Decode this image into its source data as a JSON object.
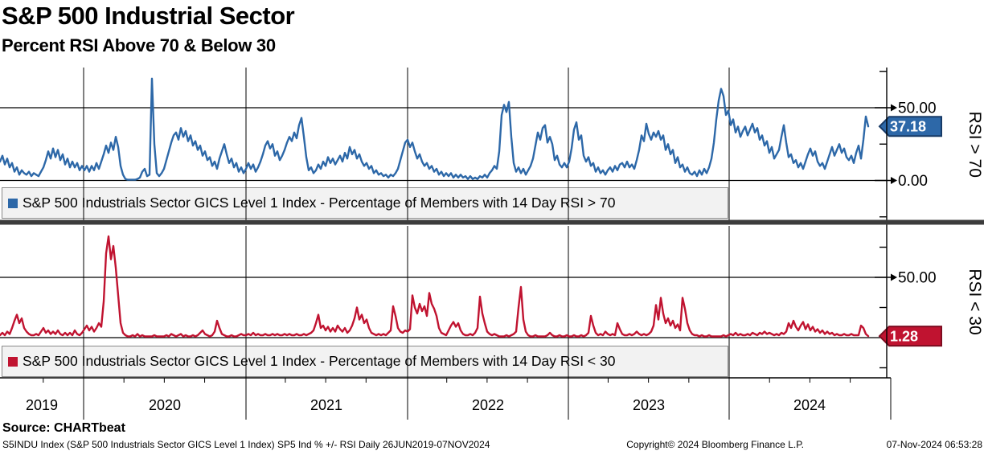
{
  "title": "S&P 500 Industrial Sector",
  "subtitle": "Percent RSI Above 70 & Below 30",
  "source_label": "Source: CHARTbeat",
  "footer": {
    "left": "S5INDU Index (S&P 500 Industrials Sector GICS Level 1 Index) SP5 Ind % +/- RSI  Daily 26JUN2019-07NOV2024",
    "center": "Copyright© 2024 Bloomberg Finance L.P.",
    "right": "07-Nov-2024 06:53:28"
  },
  "x_axis": {
    "years": [
      "2019",
      "2020",
      "2021",
      "2022",
      "2023",
      "2024"
    ]
  },
  "panels": [
    {
      "legend": "S&P 500 Industrials Sector GICS Level 1 Index - Percentage of Members with 14 Day RSI > 70",
      "axis_title": "RSI > 70",
      "labeled_ticks": [
        "50.00",
        "0.00"
      ],
      "last_value_label": "37.18",
      "color": "#2d68a8",
      "badge_border": "#173a66"
    },
    {
      "legend": "S&P 500 Industrials Sector GICS Level 1 Index - Percentage of Members with 14 Day RSI < 30",
      "axis_title": "RSI < 30",
      "labeled_ticks": [
        "50.00"
      ],
      "last_value_label": "1.28",
      "color": "#c01330",
      "badge_border": "#7d0c20"
    }
  ],
  "chart_data": {
    "type": "line",
    "title": "S&P 500 Industrial Sector - Percent RSI Above 70 & Below 30",
    "x_range": {
      "start": "26JUN2019",
      "end": "07NOV2024"
    },
    "sample_interval_days": 5.5,
    "x_year_divider_labels": [
      "2020",
      "2021",
      "2022",
      "2023",
      "2024"
    ],
    "grid": true,
    "legend_position": "below-each-panel",
    "panels": [
      {
        "name": "Percentage of Members with 14 Day RSI > 70",
        "ylabel": "RSI > 70",
        "ylim": [
          -28,
          78
        ],
        "gridlines_y": [
          0,
          50
        ],
        "minor_ticks_y": [
          75,
          25,
          -25
        ],
        "last_value": 37.18,
        "values": [
          13,
          17,
          11,
          15,
          9,
          12,
          6,
          9,
          4,
          7,
          5,
          4,
          6,
          3,
          5,
          4,
          3,
          6,
          9,
          14,
          20,
          15,
          22,
          16,
          21,
          14,
          18,
          11,
          15,
          9,
          13,
          9,
          12,
          7,
          10,
          7,
          10,
          6,
          10,
          7,
          12,
          8,
          13,
          18,
          24,
          19,
          26,
          21,
          30,
          23,
          10,
          4,
          1,
          0.5,
          0.5,
          0.5,
          0.5,
          1,
          2,
          6,
          8,
          3,
          4,
          70,
          25,
          5,
          3,
          5,
          8,
          14,
          20,
          26,
          31,
          33,
          28,
          36,
          30,
          34,
          27,
          31,
          24,
          27,
          21,
          24,
          17,
          20,
          14,
          16,
          10,
          13,
          8,
          15,
          20,
          25,
          18,
          12,
          15,
          9,
          12,
          6,
          9,
          5,
          8,
          12,
          8,
          11,
          6,
          9,
          13,
          18,
          24,
          27,
          22,
          25,
          17,
          20,
          14,
          17,
          21,
          26,
          30,
          27,
          33,
          29,
          38,
          43,
          30,
          16,
          7,
          9,
          5,
          7,
          11,
          8,
          13,
          10,
          16,
          12,
          15,
          11,
          14,
          17,
          13,
          19,
          15,
          23,
          18,
          21,
          15,
          18,
          13,
          10,
          12,
          8,
          10,
          5,
          7,
          4,
          5,
          3,
          4,
          2,
          4,
          3,
          5,
          8,
          14,
          20,
          26,
          28,
          23,
          26,
          20,
          15,
          18,
          13,
          10,
          12,
          8,
          10,
          6,
          8,
          4,
          6,
          3,
          5,
          3,
          5,
          2,
          4,
          2,
          4,
          2,
          3,
          1,
          3,
          1,
          2,
          1,
          3,
          2,
          4,
          2,
          5,
          7,
          10,
          8,
          20,
          45,
          52,
          47,
          54,
          30,
          12,
          6,
          9,
          5,
          8,
          4,
          7,
          10,
          15,
          24,
          33,
          28,
          36,
          38,
          26,
          30,
          25,
          14,
          17,
          11,
          9,
          12,
          9,
          13,
          22,
          35,
          40,
          28,
          31,
          17,
          13,
          16,
          10,
          12,
          6,
          9,
          5,
          7,
          4,
          7,
          9,
          6,
          10,
          7,
          11,
          12,
          9,
          13,
          9,
          11,
          8,
          14,
          21,
          31,
          27,
          39,
          32,
          28,
          33,
          30,
          34,
          28,
          31,
          21,
          25,
          18,
          21,
          12,
          16,
          9,
          11,
          6,
          9,
          5,
          4,
          6,
          3,
          7,
          4,
          8,
          5,
          9,
          15,
          26,
          42,
          55,
          63,
          58,
          45,
          48,
          38,
          42,
          33,
          37,
          30,
          34,
          37,
          31,
          35,
          39,
          33,
          36,
          28,
          31,
          24,
          27,
          19,
          23,
          15,
          18,
          21,
          30,
          38,
          26,
          16,
          18,
          12,
          14,
          9,
          12,
          8,
          13,
          18,
          22,
          17,
          20,
          13,
          10,
          12,
          8,
          13,
          18,
          23,
          17,
          21,
          25,
          19,
          22,
          16,
          14,
          17,
          12,
          19,
          24,
          15,
          28,
          44,
          37.18
        ]
      },
      {
        "name": "Percentage of Members with 14 Day RSI < 30",
        "ylabel": "RSI < 30",
        "ylim": [
          -30,
          93
        ],
        "gridlines_y": [
          0,
          50
        ],
        "minor_ticks_y": [
          75,
          25,
          -25
        ],
        "last_value": 1.28,
        "values": [
          2,
          4,
          2,
          5,
          3,
          8,
          14,
          19,
          12,
          16,
          8,
          5,
          3,
          2,
          2,
          3,
          2,
          5,
          8,
          4,
          6,
          3,
          5,
          3,
          6,
          3,
          2,
          4,
          2,
          4,
          2,
          6,
          3,
          2,
          4,
          7,
          10,
          6,
          9,
          5,
          8,
          12,
          9,
          30,
          70,
          84,
          65,
          76,
          58,
          35,
          12,
          4,
          2,
          1,
          1,
          2,
          1,
          3,
          1,
          2,
          1,
          1,
          1,
          1,
          2,
          1,
          1,
          1,
          1,
          2,
          1,
          3,
          2,
          1,
          2,
          3,
          1,
          2,
          1,
          1,
          2,
          1,
          2,
          4,
          6,
          3,
          2,
          1,
          2,
          5,
          14,
          8,
          3,
          2,
          1,
          1,
          2,
          1,
          1,
          2,
          3,
          2,
          2,
          3,
          2,
          4,
          2,
          3,
          2,
          2,
          3,
          2,
          2,
          3,
          2,
          3,
          2,
          2,
          3,
          2,
          3,
          2,
          2,
          3,
          2,
          2,
          3,
          2,
          3,
          4,
          6,
          12,
          19,
          8,
          10,
          6,
          9,
          5,
          8,
          5,
          10,
          7,
          5,
          8,
          4,
          6,
          10,
          16,
          25,
          15,
          19,
          12,
          15,
          8,
          4,
          3,
          2,
          3,
          2,
          3,
          2,
          4,
          6,
          26,
          18,
          8,
          5,
          4,
          6,
          5,
          7,
          35,
          25,
          20,
          28,
          22,
          26,
          18,
          37,
          28,
          24,
          18,
          8,
          4,
          3,
          2,
          6,
          10,
          13,
          9,
          12,
          6,
          3,
          2,
          2,
          3,
          2,
          4,
          8,
          34,
          20,
          12,
          5,
          3,
          2,
          3,
          2,
          1,
          1,
          1,
          2,
          1,
          2,
          3,
          5,
          25,
          42,
          15,
          5,
          2,
          1,
          1,
          2,
          1,
          1,
          1,
          1,
          2,
          4,
          2,
          1,
          1,
          2,
          1,
          1,
          2,
          1,
          1,
          2,
          1,
          1,
          2,
          1,
          2,
          4,
          18,
          10,
          4,
          2,
          3,
          2,
          5,
          3,
          2,
          3,
          2,
          12,
          7,
          3,
          2,
          2,
          3,
          2,
          3,
          5,
          3,
          2,
          3,
          2,
          3,
          5,
          10,
          27,
          15,
          33,
          20,
          12,
          16,
          10,
          14,
          8,
          11,
          6,
          33,
          24,
          12,
          6,
          3,
          2,
          2,
          1,
          2,
          1,
          1,
          2,
          1,
          1,
          1,
          1,
          1,
          2,
          1,
          2,
          3,
          2,
          4,
          2,
          3,
          2,
          2,
          3,
          2,
          4,
          3,
          2,
          4,
          3,
          5,
          3,
          4,
          3,
          2,
          3,
          2,
          4,
          3,
          5,
          12,
          8,
          14,
          9,
          6,
          10,
          13,
          7,
          11,
          6,
          9,
          5,
          7,
          4,
          6,
          3,
          5,
          3,
          4,
          2,
          3,
          2,
          2,
          3,
          2,
          2,
          3,
          2,
          2,
          2,
          10,
          8,
          3,
          1.28
        ]
      }
    ]
  }
}
